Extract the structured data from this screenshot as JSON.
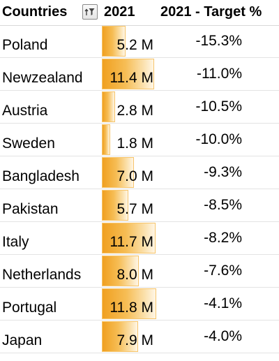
{
  "header": {
    "countries_label": "Countries",
    "year_label": "2021",
    "target_label": "2021 - Target %",
    "filter_icon": "sort-filter-icon"
  },
  "databar_colors": {
    "fill_start": "#f0a020",
    "fill_end": "#fff6e6",
    "border": "#f6c46a"
  },
  "databar_max_value": 11.8,
  "rows": [
    {
      "country": "Poland",
      "value": 5.2,
      "value_label": "5.2 M",
      "target": "-15.3%"
    },
    {
      "country": "Newzealand",
      "value": 11.4,
      "value_label": "11.4 M",
      "target": "-11.0%"
    },
    {
      "country": "Austria",
      "value": 2.8,
      "value_label": "2.8 M",
      "target": "-10.5%"
    },
    {
      "country": "Sweden",
      "value": 1.8,
      "value_label": "1.8 M",
      "target": "-10.0%"
    },
    {
      "country": "Bangladesh",
      "value": 7.0,
      "value_label": "7.0 M",
      "target": "-9.3%"
    },
    {
      "country": "Pakistan",
      "value": 5.7,
      "value_label": "5.7 M",
      "target": "-8.5%"
    },
    {
      "country": "Italy",
      "value": 11.7,
      "value_label": "11.7 M",
      "target": "-8.2%"
    },
    {
      "country": "Netherlands",
      "value": 8.0,
      "value_label": "8.0 M",
      "target": "-7.6%"
    },
    {
      "country": "Portugal",
      "value": 11.8,
      "value_label": "11.8 M",
      "target": "-4.1%"
    },
    {
      "country": "Japan",
      "value": 7.9,
      "value_label": "7.9 M",
      "target": "-4.0%"
    }
  ]
}
